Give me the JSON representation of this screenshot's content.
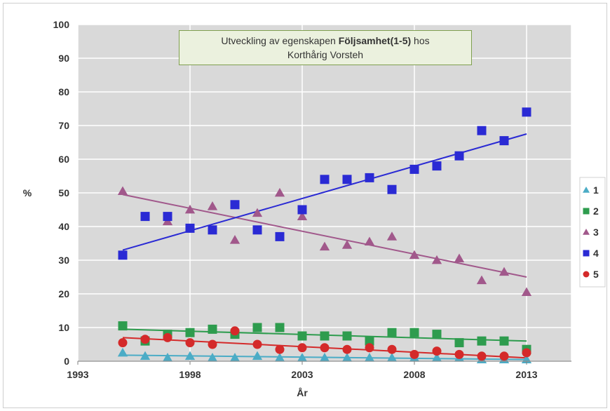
{
  "chart_data": {
    "type": "scatter",
    "title_prefix": "Utveckling av egenskapen",
    "title_bold": "Följsamhet(1-5)",
    "title_suffix": "hos",
    "title_line2": "Korthårig Vorsteh",
    "xlabel": "År",
    "ylabel": "%",
    "xlim": [
      1993,
      2015
    ],
    "ylim": [
      0,
      100
    ],
    "x_ticks": [
      1993,
      1998,
      2003,
      2008,
      2013
    ],
    "y_ticks": [
      0,
      10,
      20,
      30,
      40,
      50,
      60,
      70,
      80,
      90,
      100
    ],
    "grid": true,
    "legend_position": "right",
    "plot_background": "#d9d9d9",
    "series": [
      {
        "name": "1",
        "marker": "triangle",
        "color": "#4bacc6",
        "x": [
          1995,
          1996,
          1997,
          1998,
          1999,
          2000,
          2001,
          2002,
          2003,
          2004,
          2005,
          2006,
          2007,
          2008,
          2009,
          2010,
          2011,
          2012,
          2013
        ],
        "y": [
          2.5,
          1.5,
          1.0,
          1.5,
          1.0,
          1.0,
          1.5,
          1.0,
          1.0,
          1.0,
          1.0,
          1.0,
          1.0,
          1.0,
          1.0,
          1.0,
          0.5,
          0.5,
          0.5
        ],
        "trend": [
          [
            1995,
            1.8
          ],
          [
            2013,
            0.5
          ]
        ]
      },
      {
        "name": "2",
        "marker": "square",
        "color": "#2e9c4e",
        "x": [
          1995,
          1996,
          1997,
          1998,
          1999,
          2000,
          2001,
          2002,
          2003,
          2004,
          2005,
          2006,
          2007,
          2008,
          2009,
          2010,
          2011,
          2012,
          2013
        ],
        "y": [
          10.5,
          6,
          8,
          8.5,
          9.5,
          8,
          10,
          10,
          7.5,
          7.5,
          7.5,
          6,
          8.5,
          8.5,
          8,
          5.5,
          6,
          6,
          3.5
        ],
        "trend": [
          [
            1995,
            9.5
          ],
          [
            2013,
            6.0
          ]
        ]
      },
      {
        "name": "3",
        "marker": "triangle",
        "color": "#a1588b",
        "x": [
          1995,
          1997,
          1998,
          1999,
          2000,
          2001,
          2002,
          2003,
          2004,
          2005,
          2006,
          2007,
          2008,
          2009,
          2010,
          2011,
          2012,
          2013
        ],
        "y": [
          50.5,
          41.5,
          45,
          46,
          36,
          44,
          50,
          43,
          34,
          34.5,
          35.5,
          37,
          31.5,
          30,
          30.5,
          24,
          26.5,
          20.5
        ],
        "trend": [
          [
            1995,
            49.5
          ],
          [
            2013,
            25.0
          ]
        ]
      },
      {
        "name": "4",
        "marker": "square",
        "color": "#2a2ad4",
        "x": [
          1995,
          1996,
          1997,
          1998,
          1999,
          2000,
          2001,
          2002,
          2003,
          2004,
          2005,
          2006,
          2007,
          2008,
          2009,
          2010,
          2011,
          2012,
          2013
        ],
        "y": [
          31.5,
          43,
          43,
          39.5,
          39,
          46.5,
          39,
          37,
          45,
          54,
          54,
          54.5,
          51,
          57,
          58,
          61,
          68.5,
          65.5,
          74
        ],
        "trend": [
          [
            1995,
            33.0
          ],
          [
            2013,
            67.5
          ]
        ]
      },
      {
        "name": "5",
        "marker": "circle",
        "color": "#d42a2a",
        "x": [
          1995,
          1996,
          1997,
          1998,
          1999,
          2000,
          2001,
          2002,
          2003,
          2004,
          2005,
          2006,
          2007,
          2008,
          2009,
          2010,
          2011,
          2012,
          2013
        ],
        "y": [
          5.5,
          6.5,
          7,
          5.5,
          5,
          9,
          5,
          3.5,
          4,
          4,
          3.5,
          4,
          3.5,
          2,
          3,
          2,
          1.5,
          1.5,
          2.5
        ],
        "trend": [
          [
            1995,
            7.0
          ],
          [
            2013,
            1.0
          ]
        ]
      }
    ]
  }
}
